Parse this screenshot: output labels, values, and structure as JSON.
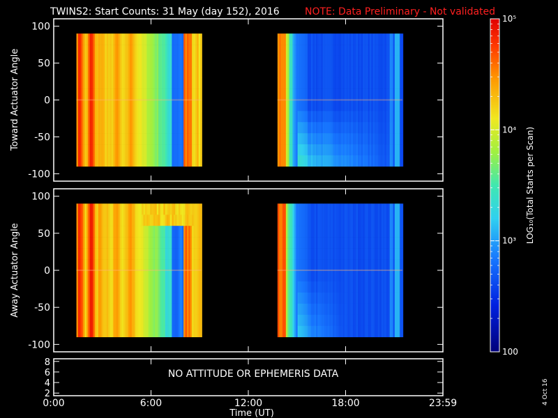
{
  "title": "TWINS2: Start Counts: 31 May (day 152), 2016",
  "note": "NOTE: Data Preliminary - Not validated",
  "date_stamp": "4 Oct 16",
  "no_data_text": "NO ATTITUDE OR EPHEMERIS DATA",
  "colors": {
    "background": "#000000",
    "axes": "#ffffff",
    "note": "#ff2020"
  },
  "chart_data": [
    {
      "type": "heatmap",
      "panel": "top",
      "ylabel": "Toward Actuator Angle",
      "ylim": [
        -110,
        110
      ],
      "yticks": [
        -100,
        -50,
        0,
        50,
        100
      ],
      "xlim_hours": [
        0,
        24
      ],
      "xticks": [
        "0:00",
        "6:00",
        "12:00",
        "18:00",
        "23:59"
      ],
      "data_intervals_hours": [
        [
          1.4,
          9.1
        ],
        [
          13.8,
          21.5
        ]
      ],
      "angle_range": [
        -90,
        90
      ],
      "colorscale": "log"
    },
    {
      "type": "heatmap",
      "panel": "middle",
      "ylabel": "Away Actuator Angle",
      "ylim": [
        -110,
        110
      ],
      "yticks": [
        -100,
        -50,
        0,
        50,
        100
      ],
      "xlim_hours": [
        0,
        24
      ],
      "xticks": [
        "0:00",
        "6:00",
        "12:00",
        "18:00",
        "23:59"
      ],
      "data_intervals_hours": [
        [
          1.4,
          9.1
        ],
        [
          13.8,
          21.5
        ]
      ],
      "angle_range": [
        -90,
        90
      ],
      "colorscale": "log"
    },
    {
      "type": "line",
      "panel": "bottom",
      "ylim": [
        1.5,
        8.5
      ],
      "yticks": [
        2,
        4,
        6,
        8
      ],
      "xlabel": "Time (UT)",
      "xticks": [
        "0:00",
        "6:00",
        "12:00",
        "18:00",
        "23:59"
      ]
    }
  ],
  "colorbar": {
    "label": "LOG₁₀(Total Starts per Scan)",
    "min": 100,
    "max": 100000,
    "scale": "log",
    "tick_labels": [
      "100",
      "10³",
      "10⁴",
      "10⁵"
    ],
    "tick_values": [
      100,
      1000,
      10000,
      100000
    ]
  }
}
